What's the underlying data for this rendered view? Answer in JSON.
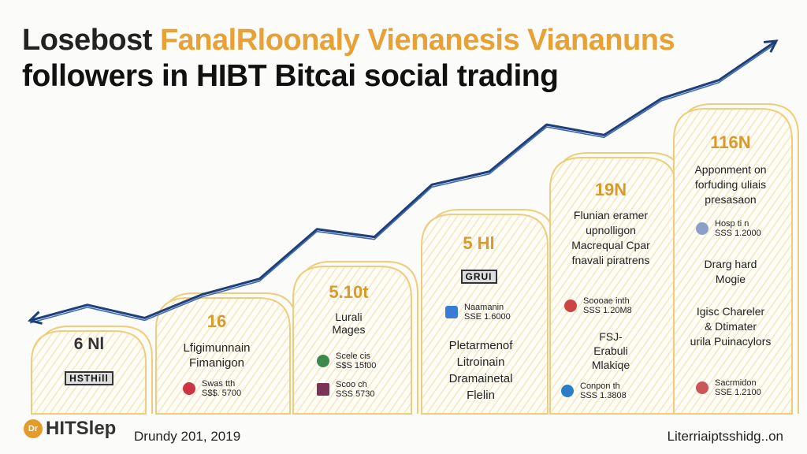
{
  "title": {
    "part1": "Losebost",
    "part2": "FanalRloonaly Vienanesis Viananuns",
    "line2": "followers in HIBT Bitcai social trading"
  },
  "colors": {
    "line": "#2b4d8c",
    "card_border": "#f0cd7a",
    "accent": "#e8a135"
  },
  "chart_data": {
    "type": "line",
    "title": "Losebost FanalRloonaly Vienanesis Viananuns followers in HIBT Bitcai social trading",
    "series": [
      {
        "values": [
          1,
          1.6,
          1.1,
          2,
          2.6,
          4.5,
          4.2,
          6.2,
          6.7,
          8.5,
          8.1,
          9.5,
          10.2,
          11.7
        ]
      }
    ],
    "grid": false
  },
  "cards": [
    {
      "value": "6 Nl",
      "badge": "HSTHill",
      "lines": [],
      "items": []
    },
    {
      "value": "16",
      "badge": "",
      "lines": [
        "Lfigimunnain",
        "Fimanigon"
      ],
      "items": [
        {
          "icon_color": "#cc3344",
          "text1": "Swas tth",
          "text2": "S$$. 5700"
        }
      ]
    },
    {
      "value": "5.10t",
      "badge": "",
      "lines": [
        "Lurali",
        "Mages"
      ],
      "items": [
        {
          "icon_color": "#3a8a4a",
          "text1": "Scele cis",
          "text2": "S$S 15f00"
        },
        {
          "icon_color": "#7a3355",
          "text1": "Scoo ch",
          "text2": "SSS 5730"
        }
      ]
    },
    {
      "value": "5 Hl",
      "badge": "GRUI",
      "lines": [
        "Pletarmenof",
        "Litroinain",
        "Dramainetal",
        "Flelin"
      ],
      "items": [
        {
          "icon_color": "#3a7bd5",
          "text1": "Naamanin",
          "text2": "SSE 1.6000"
        }
      ]
    },
    {
      "value": "19N",
      "badge": "",
      "lines": [
        "Flunian eramer",
        "upnolligon",
        "Macrequal Cpar",
        "fnavali piratrens",
        "FSJ-",
        "Erabuli",
        "Mlakiqe"
      ],
      "items": [
        {
          "icon_color": "#cc4444",
          "text1": "Soooae inth",
          "text2": "SSS 1.20M8"
        },
        {
          "icon_color": "#2a7ec8",
          "text1": "Conpon th",
          "text2": "SSS 1.3808"
        }
      ]
    },
    {
      "value": "116N",
      "badge": "",
      "lines": [
        "Apponment on",
        "forfuding uliais",
        "presasaon",
        "Drarg hard",
        "Mogie",
        "Igisc Chareler",
        "& Dtimater",
        "urila Puinacylors"
      ],
      "items": [
        {
          "icon_color": "#8aa0c8",
          "text1": "Hosp ti n",
          "text2": "SSS 1.2000"
        },
        {
          "icon_color": "#cc5555",
          "text1": "Sacrmidon",
          "text2": "SSE 1.2100"
        }
      ]
    }
  ],
  "footer": {
    "logo_mark": "Dr",
    "logo_text": "HITSlep",
    "date": "Drundy 201, 2019",
    "url": "Literriaiptsshidg..on"
  }
}
